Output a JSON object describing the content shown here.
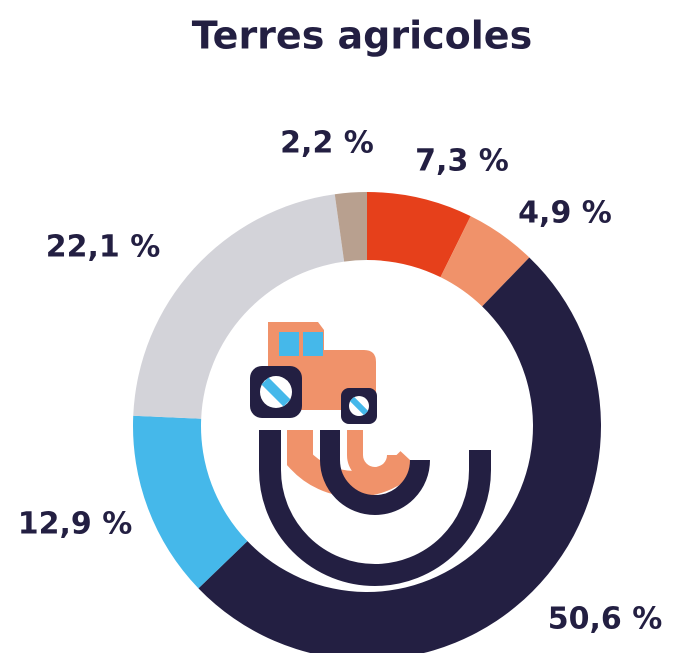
{
  "chart_data": {
    "type": "pie",
    "donut": true,
    "title": "Terres agricoles",
    "values": [
      7.3,
      4.9,
      50.6,
      12.9,
      22.1,
      2.2
    ],
    "value_labels": [
      "7,3 %",
      "4,9 %",
      "50,6 %",
      "12,9 %",
      "22,1 %",
      "2,2 %"
    ],
    "colors": [
      "#e6401b",
      "#f0926a",
      "#231f42",
      "#45b8ea",
      "#d3d3d9",
      "#b8a08f"
    ]
  }
}
